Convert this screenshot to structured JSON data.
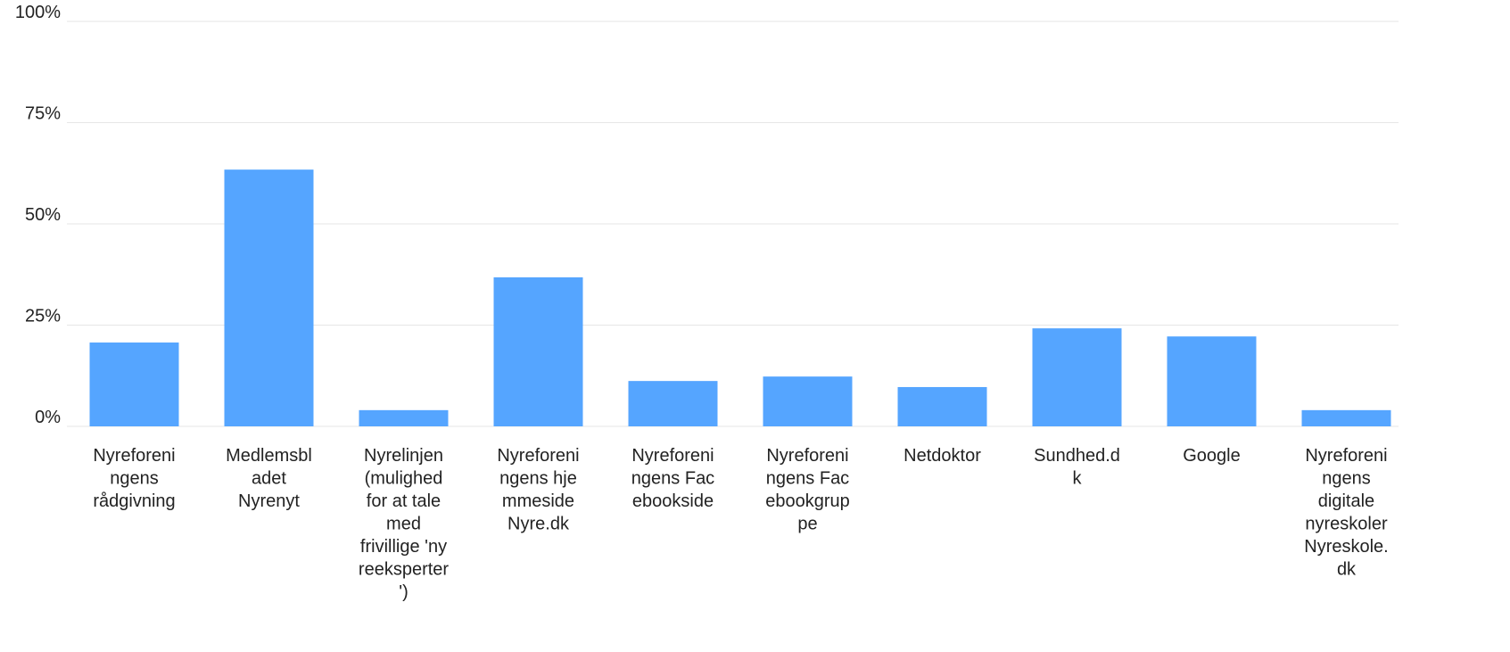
{
  "chart_data": {
    "type": "bar",
    "categories": [
      "Nyreforeningens rådgivning",
      "Medlemsbladet Nyrenyt",
      "Nyrelinjen (mulighed for at tale med frivillige 'nyreeksperter')",
      "Nyreforeningens hjemmeside Nyre.dk",
      "Nyreforeningens Facebookside",
      "Nyreforeningens Facebookgruppe",
      "Netdoktor",
      "Sundhed.dk",
      "Google",
      "Nyreforeningens digitale nyreskoler Nyreskole.dk"
    ],
    "values": [
      20.7,
      63.4,
      4.0,
      36.8,
      11.2,
      12.3,
      9.7,
      24.2,
      22.2,
      4.0
    ],
    "color": "#55a5ff",
    "ylim": [
      0,
      100
    ],
    "yticks": [
      {
        "value": 0,
        "label": "0%"
      },
      {
        "value": 25,
        "label": "25%"
      },
      {
        "value": 50,
        "label": "50%"
      },
      {
        "value": 75,
        "label": "75%"
      },
      {
        "value": 100,
        "label": "100%"
      }
    ],
    "grid": true
  }
}
